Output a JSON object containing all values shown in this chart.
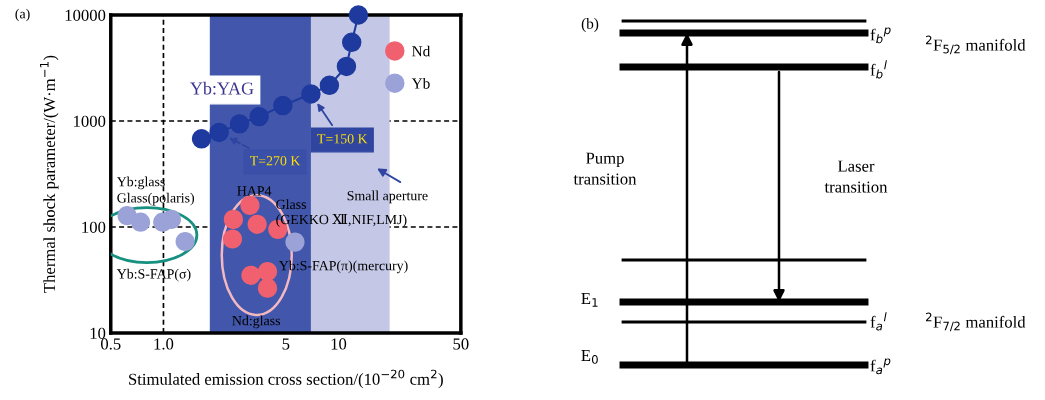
{
  "chart_data": [
    {
      "type": "scatter",
      "xlabel": "Stimulated emission cross section/(10$^{−20}$ cm$^{2}$)",
      "ylabel": "Thermal shock parameter/(W·m$^{−1}$)",
      "log": "xy",
      "xlim": [
        0.5,
        50
      ],
      "ylim": [
        10,
        10000
      ],
      "xticks": [
        0.5,
        {
          "value": 1,
          "label": "1.0"
        },
        5,
        10,
        50
      ],
      "yticks": [
        10,
        100,
        1000,
        10000
      ],
      "grid": true,
      "legend": "top right",
      "marker": "circle",
      "series": [
        {
          "type": "line",
          "color": "#1f3a9e",
          "x": [
            1.65,
            2.08,
            2.72,
            3.52,
            4.81,
            6.96,
            8.87,
            11.1,
            11.9,
            13.0
          ],
          "values": [
            680,
            780,
            940,
            1100,
            1400,
            1800,
            2170,
            3270,
            5530,
            10000
          ]
        },
        {
          "name": "Nd",
          "color": "#f0606e",
          "x": [
            3.12,
            2.51,
            3.43,
            4.5,
            2.48,
            3.16,
            3.93,
            3.93
          ],
          "values": [
            160,
            118,
            106,
            95,
            77,
            35,
            38,
            26.5
          ]
        },
        {
          "name": "Yb",
          "color": "#9aa2d8",
          "x": [
            0.62,
            0.74,
            0.99,
            1.11,
            1.33,
            5.64
          ],
          "values": [
            128,
            111,
            111,
            118,
            73,
            72
          ]
        }
      ],
      "bands": [
        {
          "axis": "x",
          "from": 1.84,
          "to": 6.96,
          "color": "#4257ab"
        },
        {
          "axis": "x",
          "from": 6.96,
          "to": 19.6,
          "color": "#c4c8e6"
        }
      ],
      "annotations": [
        "(a)",
        "Yb:YAG",
        {
          "text": "T=270 K",
          "x": 2.08,
          "y": 780
        },
        {
          "text": "T=150 K",
          "x": 6.96,
          "y": 1800
        },
        "Small aperture",
        "Yb:glass",
        "Glass(polaris)",
        "Yb:S-FAP(σ)",
        "HAP4",
        "Glass\n(GEKKO Ⅻ,NIF,LMJ)",
        "Yb:S-FAP(π)(mercury)",
        "Nd:glass"
      ]
    },
    {
      "type": "other",
      "annotations": [
        "(b)",
        "f$_{b}$$^{p}$",
        "f$_{b}$$^{l}$",
        "f$_{a}$$^{l}$",
        "f$_{a}$$^{p}$",
        "$^{2}$F$_{5/2}$ manifold",
        "$^{2}$F$_{7/2}$ manifold",
        "Pump\ntransition",
        "Laser\ntransition",
        "E$_{1}$",
        "E$_{0}$"
      ]
    }
  ]
}
